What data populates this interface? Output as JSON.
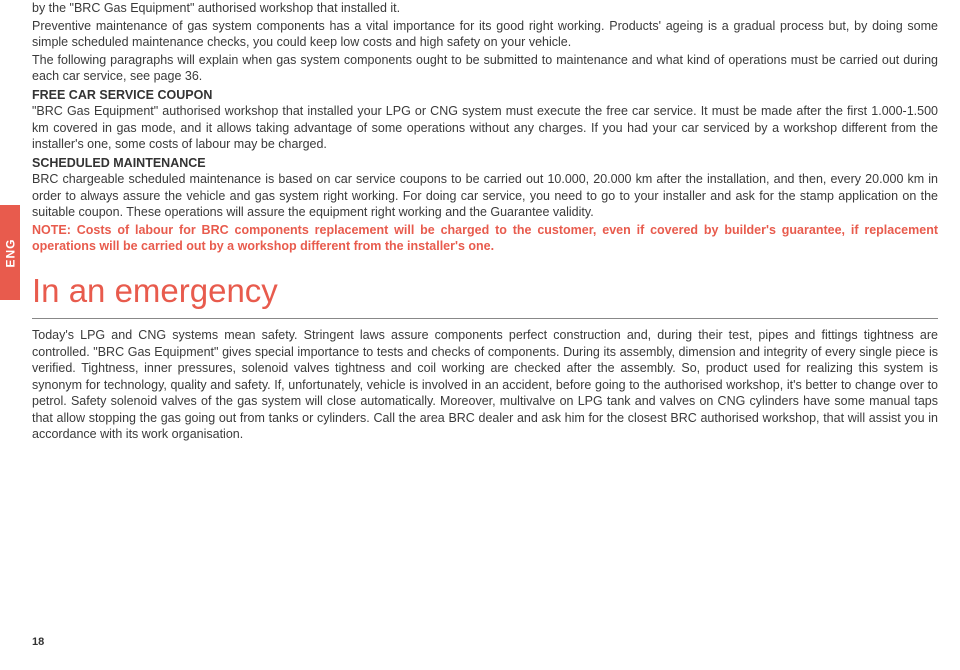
{
  "sideTab": {
    "label": "ENG"
  },
  "intro": {
    "line1": "by the \"BRC Gas Equipment\" authorised workshop that installed it.",
    "line2": "Preventive maintenance of gas system components has a vital importance for its good right working. Products' ageing is a gradual process but, by doing some simple scheduled maintenance checks, you could keep low costs and high safety on your vehicle.",
    "line3": "The following paragraphs will explain when gas system components ought to be submitted to maintenance and what kind of operations must be carried out during each car service, see page 36."
  },
  "freeService": {
    "heading": "FREE CAR SERVICE COUPON",
    "body": "\"BRC Gas Equipment\" authorised workshop that installed your LPG or CNG system must execute the free car service. It must be made after the first 1.000-1.500 km covered in gas mode, and it allows taking advantage of some operations without any charges. If you had your car serviced by a workshop different from the installer's one, some costs of labour may be charged."
  },
  "scheduled": {
    "heading": "SCHEDULED MAINTENANCE",
    "body": "BRC chargeable scheduled maintenance is based on car service coupons to be carried out 10.000, 20.000 km after the installation, and then, every 20.000 km in order to always assure the vehicle and gas system right working. For doing car service, you need to go to your installer and ask for the stamp application on the suitable coupon. These operations will assure the equipment right working and the Guarantee validity.",
    "note": "NOTE: Costs of labour for BRC components replacement will be charged to the customer, even if covered by builder's guarantee, if replacement operations will be carried out by a workshop different from the installer's one."
  },
  "emergency": {
    "title": "In an emergency",
    "body": "Today's LPG and CNG systems mean safety. Stringent laws assure components perfect construction and, during their test, pipes and fittings tightness are controlled. \"BRC Gas Equipment\" gives special importance to tests and checks of components. During its assembly, dimension and integrity of every single piece is verified. Tightness, inner pressures, solenoid valves tightness and coil working are checked after the assembly. So, product used for realizing this system is synonym for technology, quality and safety. If, unfortunately, vehicle is involved in an accident, before going to the authorised workshop, it's better to change over to petrol. Safety solenoid valves of the gas system will close automatically. Moreover, multivalve on LPG tank and valves on CNG cylinders have some manual taps that allow stopping the gas going out from tanks or cylinders. Call the area BRC dealer and ask him for the closest BRC authorised workshop, that will assist you in accordance with its work organisation."
  },
  "pageNumber": "18"
}
